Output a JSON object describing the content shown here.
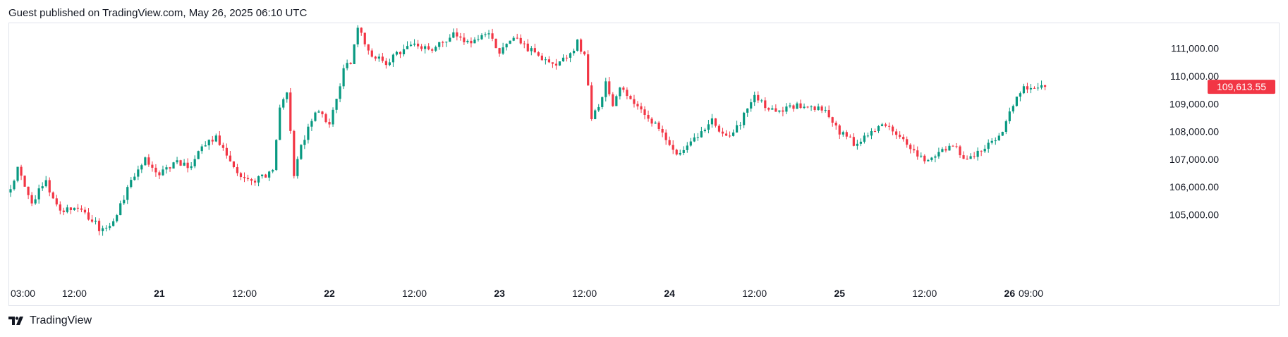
{
  "header": {
    "text": "Guest published on TradingView.com, May 26, 2025 06:10 UTC"
  },
  "footer": {
    "brand": "TradingView",
    "logo_icon": "tradingview-logo-icon"
  },
  "colors": {
    "up": "#089981",
    "down": "#f23645",
    "border": "#e0e3eb",
    "text": "#131722",
    "price_tag": "#f23645"
  },
  "chart_data": {
    "type": "candlestick",
    "title": "",
    "xlabel": "",
    "ylabel": "",
    "y_axis_position": "right",
    "grid": false,
    "ylim": [
      104000,
      112000
    ],
    "y_ticks": [
      {
        "value": 111000,
        "label": "111,000.00"
      },
      {
        "value": 110000,
        "label": "110,000.00"
      },
      {
        "value": 109000,
        "label": "109,000.00"
      },
      {
        "value": 108000,
        "label": "108,000.00"
      },
      {
        "value": 107000,
        "label": "107,000.00"
      },
      {
        "value": 106000,
        "label": "106,000.00"
      },
      {
        "value": 105000,
        "label": "105,000.00"
      }
    ],
    "x_ticks": [
      {
        "label": "03:00",
        "hours": 0,
        "bold": false
      },
      {
        "label": "12:00",
        "hours": 9,
        "bold": false
      },
      {
        "label": "21",
        "hours": 21,
        "bold": true
      },
      {
        "label": "12:00",
        "hours": 33,
        "bold": false
      },
      {
        "label": "22",
        "hours": 45,
        "bold": true
      },
      {
        "label": "12:00",
        "hours": 57,
        "bold": false
      },
      {
        "label": "23",
        "hours": 69,
        "bold": true
      },
      {
        "label": "12:00",
        "hours": 81,
        "bold": false
      },
      {
        "label": "24",
        "hours": 93,
        "bold": true
      },
      {
        "label": "12:00",
        "hours": 105,
        "bold": false
      },
      {
        "label": "25",
        "hours": 117,
        "bold": true
      },
      {
        "label": "12:00",
        "hours": 129,
        "bold": false
      },
      {
        "label": "26",
        "hours": 141,
        "bold": true
      },
      {
        "label": "09:00",
        "hours": 144,
        "bold": false
      }
    ],
    "last_price": {
      "value": 109613.55,
      "label": "109,613.55"
    },
    "bar_interval": "30m",
    "price_path": [
      [
        0,
        105800
      ],
      [
        1,
        106600
      ],
      [
        3,
        105500
      ],
      [
        5,
        106200
      ],
      [
        7,
        105100
      ],
      [
        9,
        105200
      ],
      [
        11,
        104900
      ],
      [
        13,
        104400
      ],
      [
        15,
        105000
      ],
      [
        17,
        106300
      ],
      [
        19,
        107000
      ],
      [
        21,
        106400
      ],
      [
        23,
        106900
      ],
      [
        25,
        106700
      ],
      [
        27,
        107400
      ],
      [
        29,
        107800
      ],
      [
        31,
        106900
      ],
      [
        33,
        106200
      ],
      [
        35,
        106300
      ],
      [
        37,
        106600
      ],
      [
        38,
        108800
      ],
      [
        39,
        109500
      ],
      [
        40,
        106500
      ],
      [
        41,
        107500
      ],
      [
        43,
        108800
      ],
      [
        45,
        108300
      ],
      [
        46,
        109300
      ],
      [
        47,
        110200
      ],
      [
        48,
        110500
      ],
      [
        49,
        111700
      ],
      [
        51,
        110800
      ],
      [
        53,
        110500
      ],
      [
        55,
        110900
      ],
      [
        57,
        111200
      ],
      [
        59,
        110900
      ],
      [
        61,
        111300
      ],
      [
        63,
        111500
      ],
      [
        65,
        111100
      ],
      [
        67,
        111600
      ],
      [
        69,
        110900
      ],
      [
        71,
        111500
      ],
      [
        73,
        111000
      ],
      [
        75,
        110700
      ],
      [
        77,
        110500
      ],
      [
        79,
        110800
      ],
      [
        80,
        111200
      ],
      [
        81,
        110800
      ],
      [
        82,
        108400
      ],
      [
        83,
        109000
      ],
      [
        84,
        109700
      ],
      [
        85,
        108900
      ],
      [
        86,
        109500
      ],
      [
        87,
        109300
      ],
      [
        89,
        108700
      ],
      [
        91,
        108300
      ],
      [
        93,
        107500
      ],
      [
        94,
        107100
      ],
      [
        96,
        107600
      ],
      [
        98,
        108000
      ],
      [
        99,
        108400
      ],
      [
        101,
        107800
      ],
      [
        103,
        108200
      ],
      [
        104,
        108900
      ],
      [
        105,
        109300
      ],
      [
        107,
        108700
      ],
      [
        109,
        108800
      ],
      [
        111,
        109000
      ],
      [
        113,
        108900
      ],
      [
        115,
        108800
      ],
      [
        117,
        108000
      ],
      [
        119,
        107600
      ],
      [
        121,
        107900
      ],
      [
        123,
        108200
      ],
      [
        125,
        107900
      ],
      [
        127,
        107400
      ],
      [
        129,
        107000
      ],
      [
        131,
        107300
      ],
      [
        133,
        107500
      ],
      [
        135,
        107000
      ],
      [
        137,
        107400
      ],
      [
        139,
        107600
      ],
      [
        140,
        108100
      ],
      [
        141,
        108800
      ],
      [
        142,
        109200
      ],
      [
        143,
        109600
      ],
      [
        145,
        109500
      ],
      [
        146,
        109613.55
      ]
    ]
  }
}
